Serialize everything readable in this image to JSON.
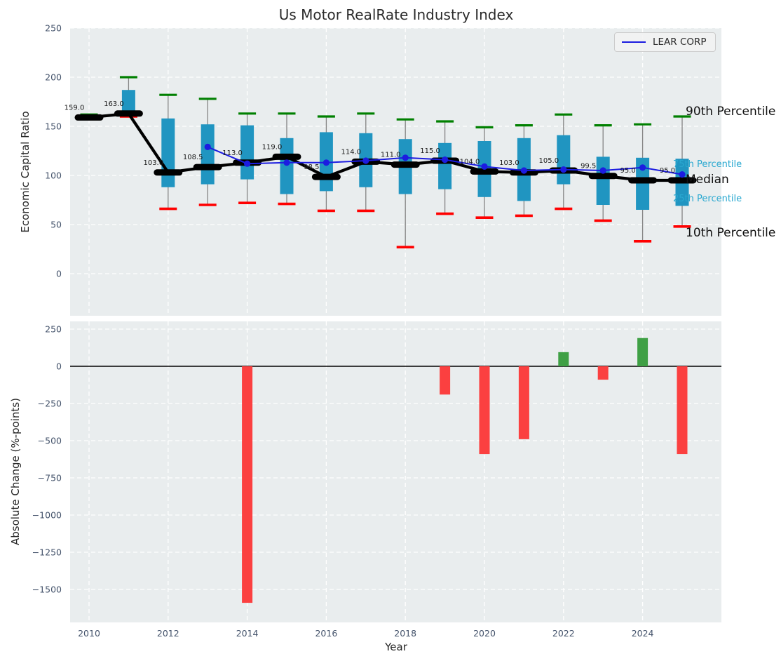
{
  "style": {
    "axes_background": "#e9edee",
    "grid_color": "#ffffff",
    "tick_color": "#44536b",
    "text_color": "#262626"
  },
  "chart_data": [
    {
      "type": "boxplot-line-combo",
      "title": "Us Motor RealRate Industry Index",
      "ylabel": "Economic Capital Ratio",
      "ylim": [
        -43,
        251
      ],
      "yticks": [
        0,
        50,
        100,
        150,
        200,
        250
      ],
      "grid": true,
      "xgrid_years": [
        2010,
        2012,
        2014,
        2016,
        2018,
        2020,
        2022,
        2024
      ],
      "years": [
        2010,
        2011,
        2012,
        2013,
        2014,
        2015,
        2016,
        2017,
        2018,
        2019,
        2020,
        2021,
        2022,
        2023,
        2024,
        2025
      ],
      "series": {
        "p90": [
          162,
          200,
          182,
          178,
          163,
          163,
          160,
          163,
          157,
          155,
          149,
          151,
          162,
          151,
          152,
          160
        ],
        "p75": [
          160.5,
          187,
          158,
          152,
          151,
          138,
          144,
          143,
          137,
          133,
          135,
          138,
          141,
          119,
          118,
          117
        ],
        "median": [
          159,
          163,
          103,
          108.5,
          113,
          119,
          98.5,
          114,
          111,
          115,
          104,
          103,
          105,
          99.5,
          95,
          95
        ],
        "p25": [
          158,
          162,
          88,
          91,
          96,
          81,
          84,
          88,
          81,
          86,
          78,
          74,
          91,
          70,
          65,
          69
        ],
        "p10": [
          157.5,
          160,
          66,
          70,
          72,
          71,
          64,
          64,
          27,
          61,
          57,
          59,
          66,
          54,
          33,
          48
        ]
      },
      "median_labels": [
        "159.0",
        "163.0",
        "103.0",
        "108.5",
        "113.0",
        "119.0",
        "98.5",
        "114.0",
        "111.0",
        "115.0",
        "104.0",
        "103.0",
        "105.0",
        "99.5",
        "95.0",
        "95.0"
      ],
      "lear": {
        "name": "LEAR CORP",
        "years": [
          2013,
          2014,
          2015,
          2016,
          2017,
          2018,
          2019,
          2020,
          2021,
          2022,
          2023,
          2024,
          2025
        ],
        "values": [
          129,
          112,
          113,
          113,
          115,
          118,
          116,
          109,
          105,
          106,
          105,
          108,
          101
        ]
      },
      "legend": {
        "label": "LEAR CORP"
      },
      "percentile_labels": [
        {
          "text": "90th Percentile",
          "value": 164,
          "size": "large",
          "color": "#111111"
        },
        {
          "text": "75th Percentile",
          "value": 111,
          "size": "small",
          "color": "#29a8d0"
        },
        {
          "text": "Median",
          "value": 95,
          "size": "large",
          "color": "#111111"
        },
        {
          "text": "25th Percentile",
          "value": 76,
          "size": "small",
          "color": "#29a8d0"
        },
        {
          "text": "10th Percentile",
          "value": 41,
          "size": "large",
          "color": "#111111"
        }
      ],
      "colors": {
        "box_fill": "#2095c1",
        "p90_cap": "#008000",
        "p10_cap": "#ff0000",
        "whisker": "#848484",
        "median_line": "#000000",
        "lear_line": "#1c1ce0"
      }
    },
    {
      "type": "bar",
      "ylabel": "Absolute Change (%-points)",
      "xlabel": "Year",
      "ylim": [
        -1720,
        300
      ],
      "yticks": [
        250,
        0,
        -250,
        -500,
        -750,
        -1000,
        -1250,
        -1500
      ],
      "xticks": [
        2010,
        2012,
        2014,
        2016,
        2018,
        2020,
        2022,
        2024
      ],
      "grid": true,
      "years": [
        2010,
        2011,
        2012,
        2013,
        2014,
        2015,
        2016,
        2017,
        2018,
        2019,
        2020,
        2021,
        2022,
        2023,
        2024,
        2025
      ],
      "values": [
        null,
        null,
        null,
        null,
        -1590,
        null,
        null,
        null,
        null,
        -190,
        -590,
        -490,
        95,
        -90,
        190,
        -590
      ],
      "colors": {
        "positive": "#3fa045",
        "negative": "#fb4040"
      }
    }
  ]
}
